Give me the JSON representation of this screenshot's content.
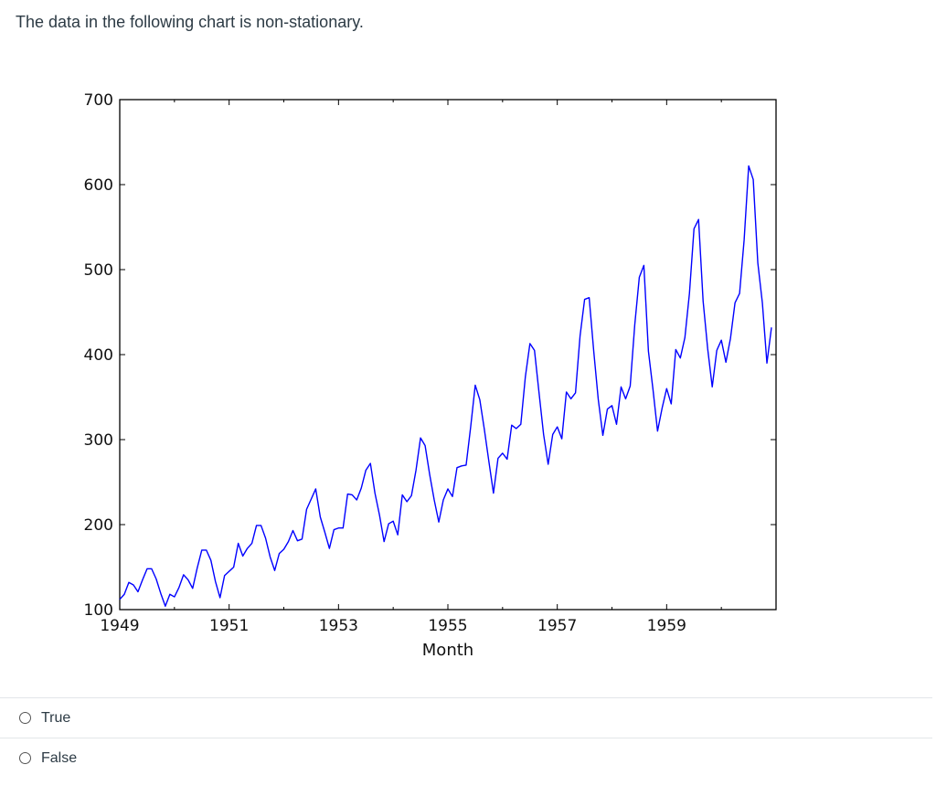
{
  "question": {
    "text": "The data in the following chart is non-stationary."
  },
  "answers": [
    {
      "label": "True"
    },
    {
      "label": "False"
    }
  ],
  "chart_data": {
    "type": "line",
    "title": "",
    "xlabel": "Month",
    "ylabel": "",
    "xlim": [
      1949,
      1961
    ],
    "ylim": [
      100,
      700
    ],
    "x_ticks": [
      "1949",
      "1951",
      "1953",
      "1955",
      "1957",
      "1959"
    ],
    "y_ticks": [
      "100",
      "200",
      "300",
      "400",
      "500",
      "600",
      "700"
    ],
    "grid": false,
    "line_color": "#0000ff",
    "series": [
      {
        "start_year": 1949,
        "values": [
          112,
          118,
          132,
          129,
          121,
          135,
          148,
          148,
          136,
          119,
          104,
          118,
          115,
          126,
          141,
          135,
          125,
          149,
          170,
          170,
          158,
          133,
          114,
          140,
          145,
          150,
          178,
          163,
          172,
          178,
          199,
          199,
          184,
          162,
          146,
          166,
          171,
          180,
          193,
          181,
          183,
          218,
          230,
          242,
          209,
          191,
          172,
          194,
          196,
          196,
          236,
          235,
          229,
          243,
          264,
          272,
          237,
          211,
          180,
          201,
          204,
          188,
          235,
          227,
          234,
          264,
          302,
          293,
          259,
          229,
          203,
          229,
          242,
          233,
          267,
          269,
          270,
          315,
          364,
          347,
          312,
          274,
          237,
          278,
          284,
          277,
          317,
          313,
          318,
          374,
          413,
          405,
          355,
          306,
          271,
          306,
          315,
          301,
          356,
          348,
          355,
          422,
          465,
          467,
          404,
          347,
          305,
          336,
          340,
          318,
          362,
          348,
          363,
          435,
          491,
          505,
          404,
          359,
          310,
          337,
          360,
          342,
          406,
          396,
          420,
          472,
          548,
          559,
          463,
          407,
          362,
          405,
          417,
          391,
          419,
          461,
          472,
          535,
          622,
          606,
          508,
          461,
          390,
          432
        ]
      }
    ]
  }
}
